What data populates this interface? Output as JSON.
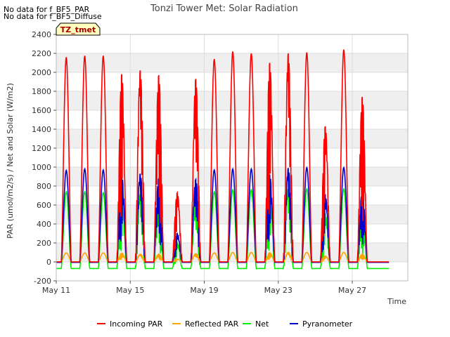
{
  "notes": [
    "No data for f_BF5_PAR",
    "No data for f_BF5_Diffuse"
  ],
  "badge": "TZ_tmet",
  "chart_data": {
    "type": "line",
    "title": "Tonzi Tower Met: Solar Radiation",
    "xlabel": "Time",
    "ylabel": "PAR (umol/m2/s) / Net and Solar (W/m2)",
    "ylim": [
      -200,
      2400
    ],
    "yticks": [
      -200,
      0,
      200,
      400,
      600,
      800,
      1000,
      1200,
      1400,
      1600,
      1800,
      2000,
      2200,
      2400
    ],
    "xlim": [
      "2024-05-11",
      "2024-05-30"
    ],
    "xticks": [
      {
        "date": "2024-05-11",
        "label": "May 11"
      },
      {
        "date": "2024-05-15",
        "label": "May 15"
      },
      {
        "date": "2024-05-19",
        "label": "May 19"
      },
      {
        "date": "2024-05-23",
        "label": "May 23"
      },
      {
        "date": "2024-05-27",
        "label": "May 27"
      }
    ],
    "data_range": [
      "2024-05-11",
      "2024-05-28"
    ],
    "grid": true,
    "legend_position": "bottom",
    "days": [
      "2024-05-11",
      "2024-05-12",
      "2024-05-13",
      "2024-05-14",
      "2024-05-15",
      "2024-05-16",
      "2024-05-17",
      "2024-05-18",
      "2024-05-19",
      "2024-05-20",
      "2024-05-21",
      "2024-05-22",
      "2024-05-23",
      "2024-05-24",
      "2024-05-25",
      "2024-05-26",
      "2024-05-27",
      "2024-05-28"
    ],
    "series": [
      {
        "name": "Incoming PAR",
        "color": "#ff0000",
        "night": 0,
        "daily_peak": [
          2160,
          2175,
          2175,
          1980,
          2020,
          1970,
          730,
          1930,
          2140,
          2220,
          2200,
          2100,
          2200,
          2210,
          1430,
          2240,
          1740,
          0
        ],
        "cloudy": [
          false,
          false,
          false,
          true,
          true,
          true,
          true,
          true,
          false,
          false,
          false,
          true,
          true,
          false,
          true,
          false,
          true,
          false
        ]
      },
      {
        "name": "Reflected PAR",
        "color": "#ffa500",
        "night": 0,
        "daily_peak": [
          95,
          95,
          95,
          90,
          80,
          80,
          30,
          85,
          95,
          100,
          100,
          95,
          100,
          100,
          60,
          100,
          80,
          0
        ],
        "cloudy": [
          false,
          false,
          false,
          true,
          true,
          true,
          true,
          true,
          false,
          false,
          false,
          true,
          true,
          false,
          true,
          false,
          true,
          false
        ]
      },
      {
        "name": "Net",
        "color": "#00ee00",
        "night": -70,
        "daily_peak": [
          740,
          740,
          730,
          700,
          710,
          700,
          200,
          680,
          740,
          760,
          760,
          720,
          770,
          770,
          500,
          770,
          560,
          0
        ],
        "cloudy": [
          false,
          false,
          false,
          true,
          true,
          true,
          true,
          true,
          false,
          false,
          false,
          true,
          true,
          false,
          true,
          false,
          true,
          false
        ]
      },
      {
        "name": "Pyranometer",
        "color": "#0000cc",
        "night": -5,
        "daily_peak": [
          965,
          980,
          970,
          910,
          930,
          880,
          300,
          870,
          970,
          980,
          980,
          920,
          990,
          995,
          700,
          995,
          760,
          0
        ],
        "cloudy": [
          false,
          false,
          false,
          true,
          true,
          true,
          true,
          true,
          false,
          false,
          false,
          true,
          true,
          false,
          true,
          false,
          true,
          false
        ]
      }
    ]
  }
}
